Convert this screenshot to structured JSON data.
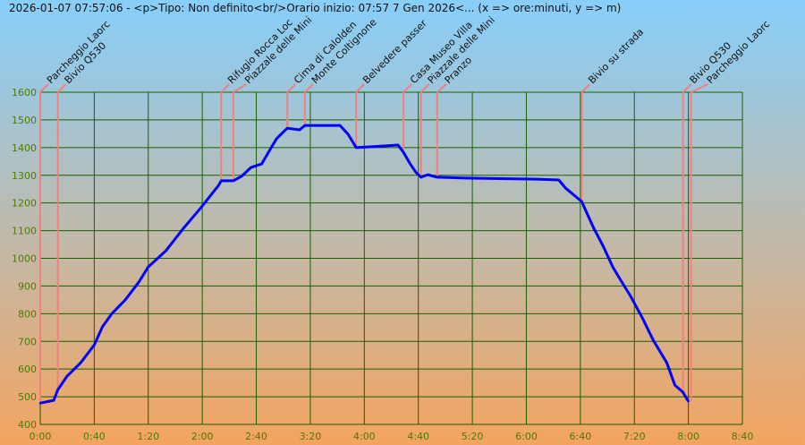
{
  "chart_data": {
    "type": "line",
    "title": "2026-01-07 07:57:06 - <p>Tipo: Non definito<br/>Orario inizio: 07:57 7 Gen 2026<... (x => ore:minuti, y => m)",
    "xlabel": "ore:minuti",
    "ylabel": "m",
    "xlim": [
      0,
      520
    ],
    "ylim": [
      400,
      1600
    ],
    "x_ticks": [
      "0:00",
      "0:40",
      "1:20",
      "2:00",
      "2:40",
      "3:20",
      "4:00",
      "4:40",
      "5:20",
      "6:00",
      "6:40",
      "7:20",
      "8:00",
      "8:40"
    ],
    "y_ticks": [
      "400",
      "500",
      "600",
      "700",
      "800",
      "900",
      "1000",
      "1100",
      "1200",
      "1300",
      "1400",
      "1500",
      "1600"
    ],
    "grid": true,
    "colors": {
      "line": "#0000ff",
      "grid": "#1a5e00",
      "waypoint": "#f08080",
      "tick": "#4f7a00"
    },
    "x_minutes": [
      0,
      10,
      13,
      20,
      30,
      40,
      46,
      53,
      63,
      73,
      80,
      93,
      106,
      119,
      132,
      134,
      143,
      149,
      156,
      164,
      169,
      175,
      181,
      183,
      192,
      196,
      222,
      228,
      234,
      255,
      265,
      269,
      274,
      278,
      282,
      287,
      294,
      315,
      368,
      384,
      389,
      401,
      410,
      417,
      424,
      430,
      437,
      446,
      454,
      464,
      470,
      476,
      480
    ],
    "elevation_m": [
      477,
      487,
      525,
      575,
      623,
      687,
      752,
      800,
      850,
      914,
      969,
      1027,
      1108,
      1183,
      1263,
      1280,
      1280,
      1296,
      1328,
      1341,
      1383,
      1432,
      1461,
      1470,
      1464,
      1480,
      1480,
      1448,
      1400,
      1406,
      1409,
      1383,
      1341,
      1312,
      1293,
      1302,
      1293,
      1290,
      1286,
      1283,
      1254,
      1205,
      1108,
      1043,
      969,
      920,
      865,
      784,
      704,
      623,
      542,
      516,
      483
    ],
    "waypoints": [
      {
        "label": "Parcheggio Laorc",
        "minute": 0
      },
      {
        "label": "Bivio Q530",
        "minute": 13
      },
      {
        "label": "Rifugio Rocca Loc",
        "minute": 134
      },
      {
        "label": "Piazzale delle Mini",
        "minute": 143
      },
      {
        "label": "Cima di Calolden",
        "minute": 183
      },
      {
        "label": "Monte Coltignone",
        "minute": 196
      },
      {
        "label": "Belvedere passer",
        "minute": 234
      },
      {
        "label": "Casa Museo Villa",
        "minute": 269
      },
      {
        "label": "Piazzale delle Mini",
        "minute": 282
      },
      {
        "label": "Pranzo",
        "minute": 294
      },
      {
        "label": "Bivio su strada",
        "minute": 401
      },
      {
        "label": "Bivio Q530",
        "minute": 476
      },
      {
        "label": "Parcheggio Laorc",
        "minute": 482
      }
    ]
  }
}
